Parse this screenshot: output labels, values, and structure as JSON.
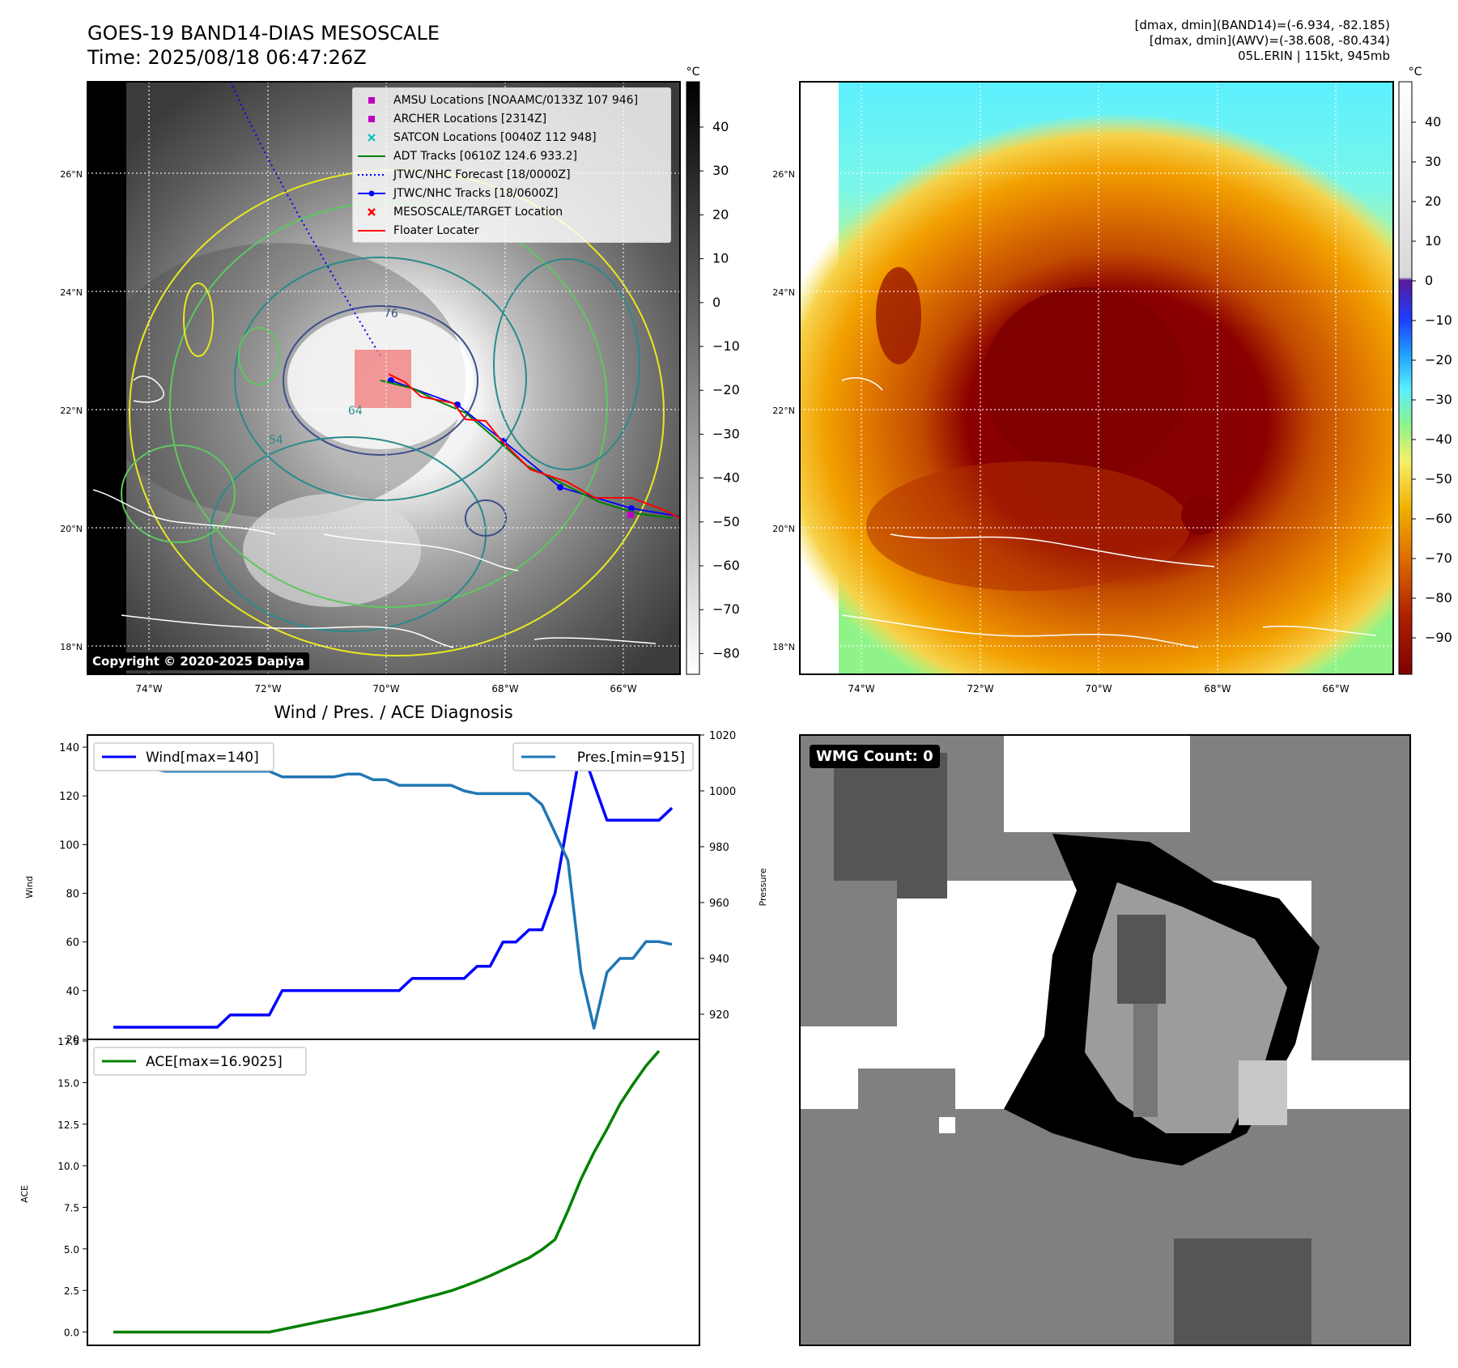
{
  "header": {
    "title_line1": "GOES-19 BAND14-DIAS MESOSCALE",
    "title_line2": "Time: 2025/08/18 06:47:26Z",
    "stats_line1": "[dmax, dmin](BAND14)=(-6.934, -82.185)",
    "stats_line2": "[dmax, dmin](AWV)=(-38.608, -80.434)",
    "stats_line3": "05L.ERIN | 115kt, 945mb",
    "copyright": "Copyright © 2020-2025 Dapiya"
  },
  "map": {
    "lat_ticks": [
      "26°N",
      "24°N",
      "22°N",
      "20°N",
      "18°N"
    ],
    "lon_ticks": [
      "74°W",
      "72°W",
      "70°W",
      "68°W",
      "66°W"
    ],
    "left_colorbar": {
      "unit": "°C",
      "ticks": [
        "40",
        "30",
        "20",
        "10",
        "0",
        "−10",
        "−20",
        "−30",
        "−40",
        "−50",
        "−60",
        "−70",
        "−80"
      ]
    },
    "right_colorbar": {
      "unit": "°C",
      "ticks": [
        "40",
        "30",
        "20",
        "10",
        "0",
        "−10",
        "−20",
        "−30",
        "−40",
        "−50",
        "−60",
        "−70",
        "−80",
        "−90"
      ]
    },
    "contour_labels": [
      "76",
      "64",
      "54"
    ],
    "legend": [
      {
        "label": "AMSU Locations [NOAAMC/0133Z 107 946]",
        "color": "#bf00bf",
        "marker": "square"
      },
      {
        "label": "ARCHER Locations [2314Z]",
        "color": "#bf00bf",
        "marker": "square"
      },
      {
        "label": "SATCON Locations [0040Z 112 948]",
        "color": "#00bfbf",
        "marker": "x"
      },
      {
        "label": "ADT Tracks [0610Z 124.6 933.2]",
        "color": "#008000",
        "marker": "line"
      },
      {
        "label": "JTWC/NHC Forecast [18/0000Z]",
        "color": "#0000ff",
        "marker": "dotted"
      },
      {
        "label": "JTWC/NHC Tracks [18/0600Z]",
        "color": "#0000ff",
        "marker": "line-dot"
      },
      {
        "label": "MESOSCALE/TARGET Location",
        "color": "#ff0000",
        "marker": "x"
      },
      {
        "label": "Floater Locater",
        "color": "#ff0000",
        "marker": "line"
      }
    ]
  },
  "wmg": {
    "count_label": "WMG Count: 0"
  },
  "chart_data": [
    {
      "type": "line",
      "title": "Wind / Pres. / ACE Diagnosis",
      "ylabel": "Wind",
      "y2label": "Pressure",
      "ylim": [
        20,
        145
      ],
      "y2lim": [
        911,
        1020
      ],
      "yticks": [
        "20",
        "40",
        "60",
        "80",
        "100",
        "120",
        "140"
      ],
      "y2ticks": [
        "920",
        "940",
        "960",
        "980",
        "1000",
        "1020"
      ],
      "series": [
        {
          "name": "Wind[max=140]",
          "color": "#0000ff",
          "axis": "left",
          "values": [
            25,
            25,
            25,
            25,
            25,
            25,
            25,
            25,
            25,
            30,
            30,
            30,
            30,
            40,
            40,
            40,
            40,
            40,
            40,
            40,
            40,
            40,
            40,
            45,
            45,
            45,
            45,
            45,
            50,
            50,
            60,
            60,
            65,
            65,
            80,
            110,
            140,
            125,
            110,
            110,
            110,
            110,
            110,
            115
          ]
        },
        {
          "name": "Pres.[min=915]",
          "color": "#1f77b4",
          "axis": "right",
          "values": [
            1015,
            1015,
            1009,
            1008,
            1007,
            1007,
            1007,
            1007,
            1007,
            1007,
            1007,
            1007,
            1007,
            1005,
            1005,
            1005,
            1005,
            1005,
            1006,
            1006,
            1004,
            1004,
            1002,
            1002,
            1002,
            1002,
            1002,
            1000,
            999,
            999,
            999,
            999,
            999,
            995,
            985,
            975,
            935,
            915,
            935,
            940,
            940,
            946,
            946,
            945
          ]
        }
      ]
    },
    {
      "type": "line",
      "ylabel": "ACE",
      "ylim": [
        -0.8,
        17.6
      ],
      "yticks": [
        "0.0",
        "2.5",
        "5.0",
        "7.5",
        "10.0",
        "12.5",
        "15.0",
        "17.5"
      ],
      "series": [
        {
          "name": "ACE[max=16.9025]",
          "color": "#008000",
          "values": [
            0,
            0,
            0,
            0,
            0,
            0,
            0,
            0,
            0,
            0,
            0,
            0,
            0,
            0.16,
            0.32,
            0.48,
            0.64,
            0.8,
            0.96,
            1.12,
            1.28,
            1.46,
            1.66,
            1.86,
            2.06,
            2.26,
            2.48,
            2.76,
            3.06,
            3.38,
            3.74,
            4.1,
            4.46,
            4.96,
            5.56,
            7.3,
            9.2,
            10.8,
            12.2,
            13.7,
            14.9,
            16.0,
            16.9025
          ]
        }
      ]
    }
  ]
}
